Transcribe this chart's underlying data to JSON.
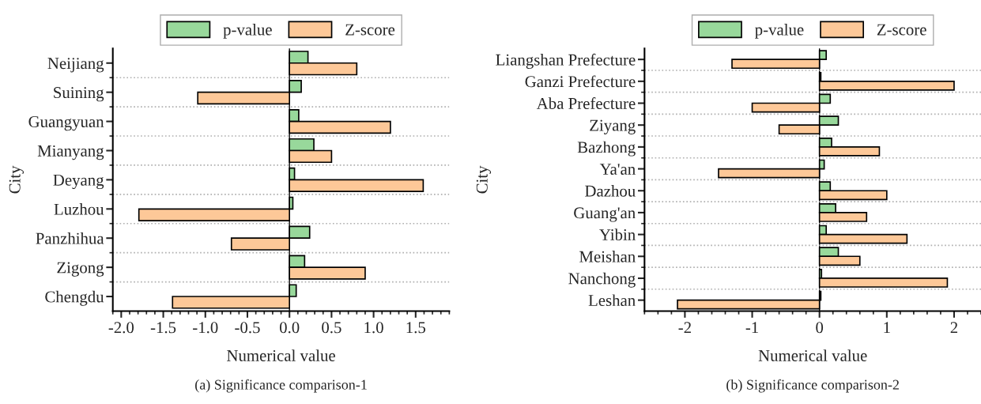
{
  "chart_data": [
    {
      "type": "bar",
      "orientation": "horizontal",
      "title": "(a) Significance comparison-1",
      "xlabel": "Numerical value",
      "ylabel": "City",
      "categories": [
        "Neijiang",
        "Suining",
        "Guangyuan",
        "Mianyang",
        "Deyang",
        "Luzhou",
        "Panzhihua",
        "Zigong",
        "Chengdu"
      ],
      "series": [
        {
          "name": "p-value",
          "color": "#98d89b",
          "values": [
            0.22,
            0.14,
            0.11,
            0.29,
            0.06,
            0.04,
            0.24,
            0.18,
            0.08
          ]
        },
        {
          "name": "Z-score",
          "color": "#fdc898",
          "values": [
            0.8,
            -1.09,
            1.2,
            0.5,
            1.59,
            -1.79,
            -0.69,
            0.9,
            -1.39
          ]
        }
      ],
      "xlim": [
        -2.1,
        1.9
      ],
      "xticks": [
        {
          "value": -2,
          "label": "-2.0"
        },
        {
          "value": -1.5,
          "label": "-1.5"
        },
        {
          "value": -1,
          "label": "-1.0"
        },
        {
          "value": -0.5,
          "label": "-0.5"
        },
        {
          "value": 0,
          "label": "0.0"
        },
        {
          "value": 0.5,
          "label": "0.5"
        },
        {
          "value": 1,
          "label": "1.0"
        },
        {
          "value": 1.5,
          "label": "1.5"
        }
      ],
      "grid": "y",
      "legend": "top"
    },
    {
      "type": "bar",
      "orientation": "horizontal",
      "title": "(b) Significance comparison-2",
      "xlabel": "Numerical value",
      "ylabel": "City",
      "categories": [
        "Liangshan Prefecture",
        "Ganzi Prefecture",
        "Aba Prefecture",
        "Ziyang",
        "Bazhong",
        "Ya'an",
        "Dazhou",
        "Guang'an",
        "Yibin",
        "Meishan",
        "Nanchong",
        "Leshan"
      ],
      "series": [
        {
          "name": "p-value",
          "color": "#98d89b",
          "values": [
            0.1,
            0.02,
            0.16,
            0.28,
            0.18,
            0.07,
            0.16,
            0.24,
            0.1,
            0.28,
            0.03,
            0.02
          ]
        },
        {
          "name": "Z-score",
          "color": "#fdc898",
          "values": [
            -1.3,
            2.0,
            -1.0,
            -0.6,
            0.89,
            -1.5,
            1.0,
            0.7,
            1.3,
            0.6,
            1.9,
            -2.11
          ]
        }
      ],
      "xlim": [
        -2.6,
        2.4
      ],
      "xticks": [
        {
          "value": -2,
          "label": "-2"
        },
        {
          "value": -1,
          "label": "-1"
        },
        {
          "value": 0,
          "label": "0"
        },
        {
          "value": 1,
          "label": "1"
        },
        {
          "value": 2,
          "label": "2"
        }
      ],
      "grid": "y",
      "legend": "top"
    }
  ]
}
